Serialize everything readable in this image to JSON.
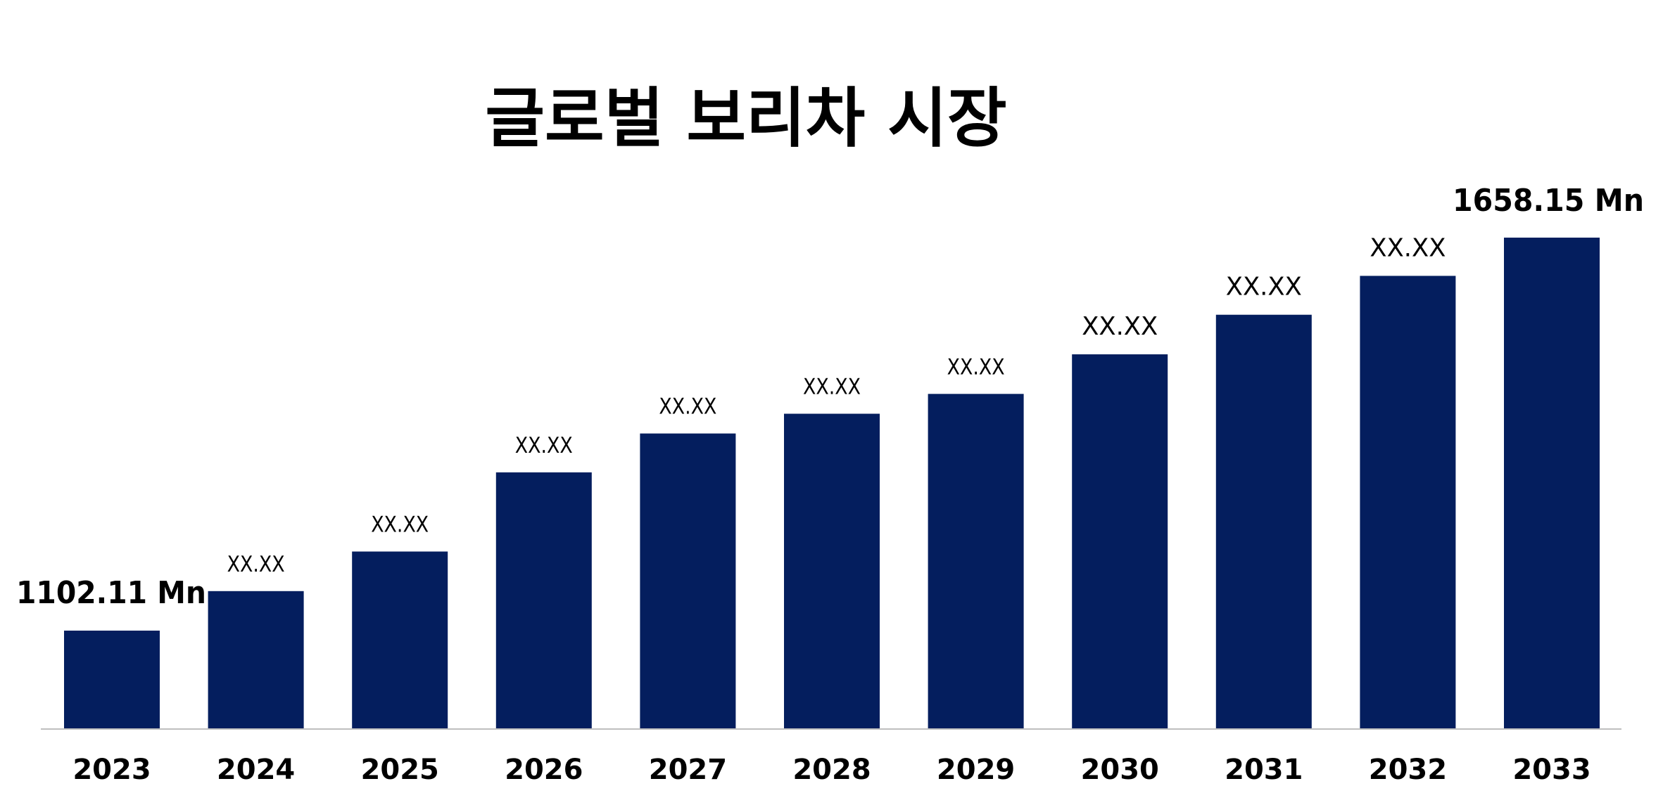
{
  "chart_data": {
    "type": "bar",
    "title": "글로벌 보리차 시장",
    "categories": [
      "2023",
      "2024",
      "2025",
      "2026",
      "2027",
      "2028",
      "2029",
      "2030",
      "2031",
      "2032",
      "2033"
    ],
    "values": [
      1102.11,
      1158.0,
      1214.0,
      1326.0,
      1381.0,
      1409.0,
      1437.0,
      1493.0,
      1549.0,
      1604.0,
      1658.15
    ],
    "value_labels": [
      "1102.11 Mn",
      "XX.XX",
      "XX.XX",
      "XX.XX",
      "XX.XX",
      "XX.XX",
      "XX.XX",
      "XX.XX",
      "XX.XX",
      "XX.XX",
      "1658.15 Mn"
    ],
    "bar_color": "#041E5E",
    "axis_color": "#BFBFBF",
    "xlabel": "",
    "ylabel": "",
    "grid": false,
    "legend": false
  }
}
